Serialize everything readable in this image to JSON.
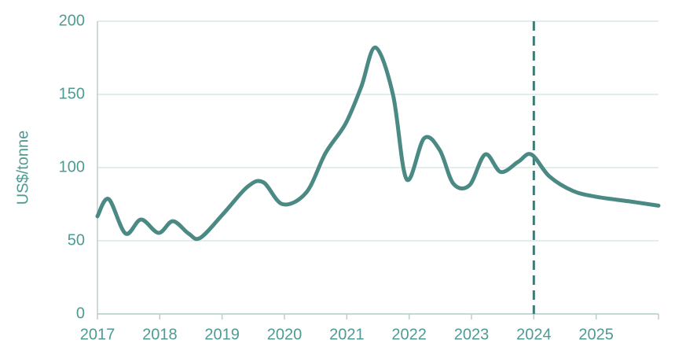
{
  "chart_data": {
    "type": "line",
    "y_label": "US$/tonne",
    "xlim": [
      2017,
      2026
    ],
    "xticks": [
      2017,
      2018,
      2019,
      2020,
      2021,
      2022,
      2023,
      2024,
      2025
    ],
    "ylim": [
      0,
      200
    ],
    "yticks": [
      0,
      50,
      100,
      150,
      200
    ],
    "grid": true,
    "vline_x": 2024,
    "series": [
      {
        "color": "#4b8a84",
        "x": [
          2017.0,
          2017.18,
          2017.45,
          2017.7,
          2017.98,
          2018.21,
          2018.46,
          2018.65,
          2019.03,
          2019.41,
          2019.66,
          2019.97,
          2020.35,
          2020.66,
          2020.98,
          2021.23,
          2021.46,
          2021.74,
          2021.96,
          2022.24,
          2022.49,
          2022.71,
          2022.97,
          2023.22,
          2023.47,
          2023.75,
          2023.96,
          2024.25,
          2024.63,
          2025.01,
          2025.52,
          2026.0
        ],
        "values": [
          66.7,
          78.5,
          55,
          64.5,
          55.4,
          63.4,
          55,
          52,
          69,
          87,
          90,
          75,
          83,
          110,
          130,
          155,
          182,
          150,
          92,
          120,
          112,
          89,
          88,
          109,
          97,
          104,
          109,
          94,
          84,
          80,
          77,
          74
        ]
      }
    ]
  }
}
